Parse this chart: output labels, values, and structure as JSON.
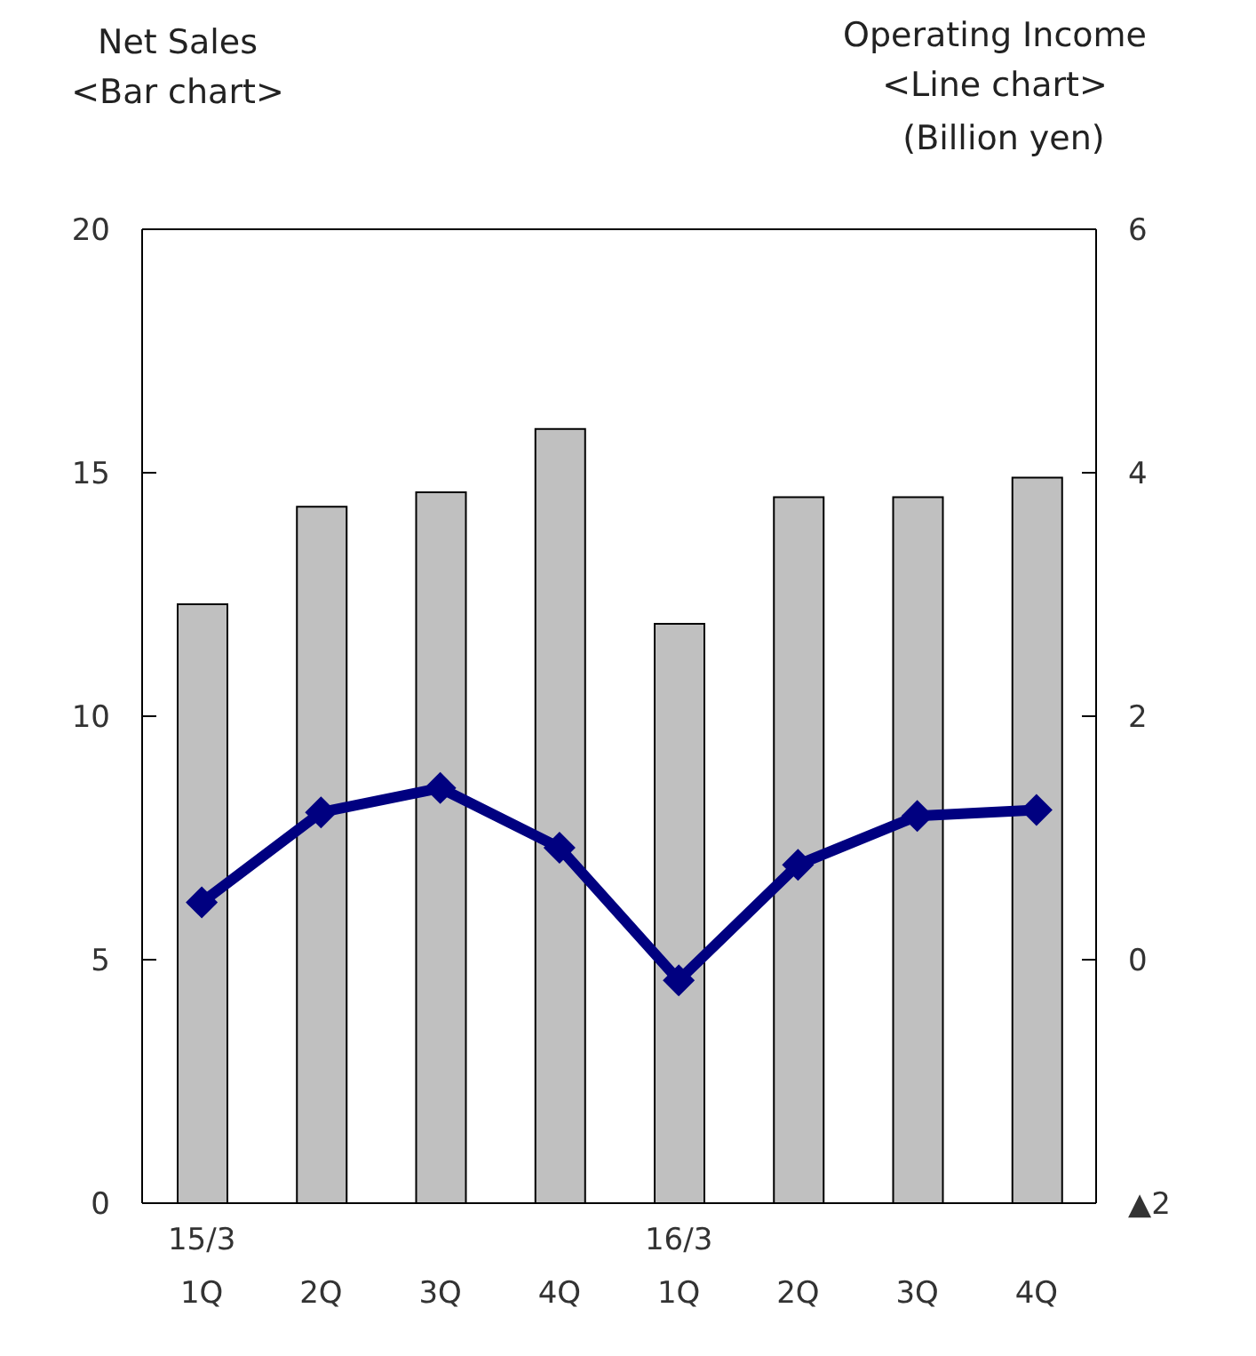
{
  "chart_data": {
    "type": "bar",
    "ylabel": "Net Sales\n<Bar chart>",
    "y2label": "Operating Income\n<Line chart>",
    "annotations": [
      "(Billion yen)"
    ],
    "categories": [
      "15/3\n1Q",
      "2Q",
      "3Q",
      "4Q",
      "16/3\n1Q",
      "2Q",
      "3Q",
      "4Q"
    ],
    "series": [
      {
        "color": "#c0c0c0",
        "values": [
          12.3,
          14.3,
          14.6,
          15.9,
          11.9,
          14.5,
          14.5,
          14.9
        ]
      },
      {
        "type": "line",
        "axis": "y2",
        "color": "#000080",
        "marker": "diamond",
        "values": [
          0.47,
          1.21,
          1.41,
          0.92,
          -0.17,
          0.78,
          1.18,
          1.23
        ]
      }
    ],
    "ylim": [
      0,
      20
    ],
    "yticks": [
      0,
      5,
      10,
      15,
      20
    ],
    "y2lim": [
      -2,
      6
    ],
    "y2ticks": [
      {
        "value": -2,
        "label": "▲2"
      },
      0,
      2,
      4,
      6
    ],
    "grid": false,
    "legend": false
  }
}
